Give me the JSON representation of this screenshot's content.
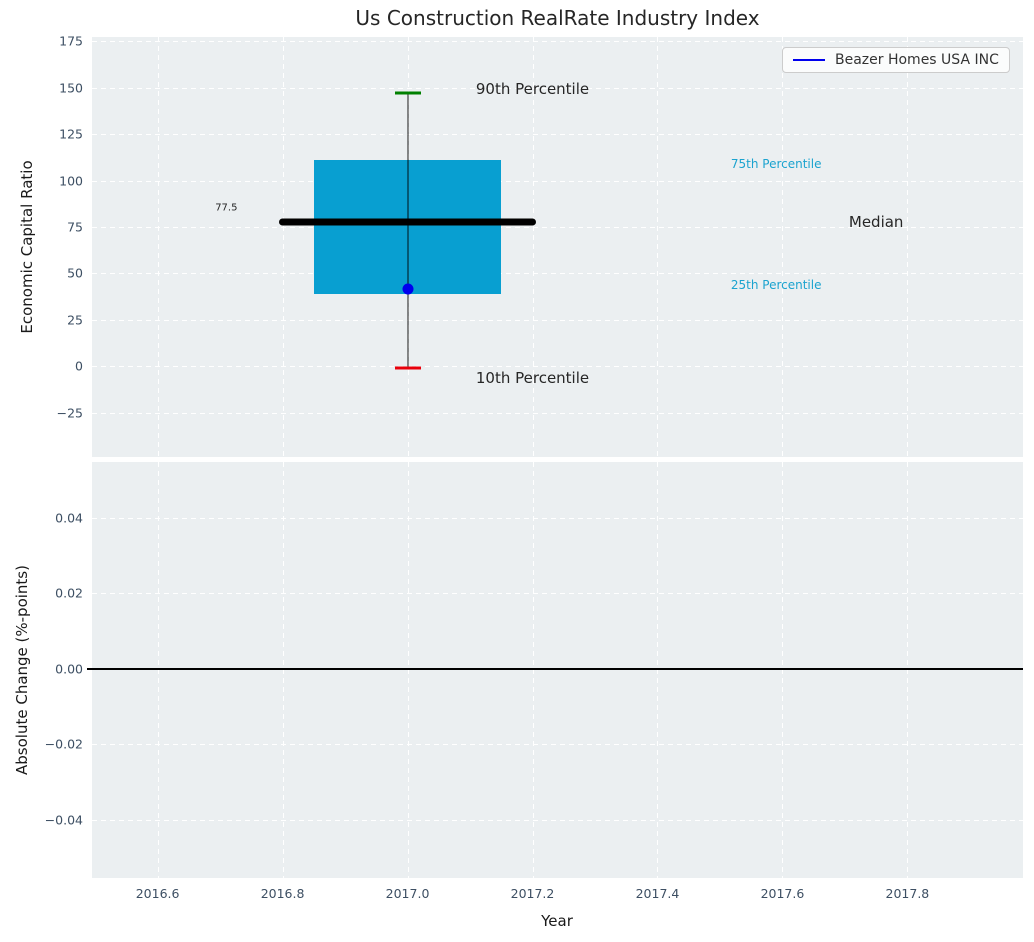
{
  "title": "Us Construction RealRate Industry Index",
  "legend": {
    "label": "Beazer Homes USA INC"
  },
  "colors": {
    "plot_bg": "#ebeff1",
    "grid": "#ffffff",
    "box_fill": "#089fd1",
    "median_line": "#000000",
    "whisker": "#737373",
    "cap_90th": "#008000",
    "cap_10th": "#e8000b",
    "company_point": "#0000ee",
    "tick_label": "#3d4f63",
    "percentile_label_cyan": "#1ba3cf",
    "annotation_black": "#262626"
  },
  "chart_data": [
    {
      "type": "boxplot",
      "title": "Us Construction RealRate Industry Index",
      "xlabel": "Year",
      "ylabel": "Economic Capital Ratio",
      "xlim": [
        2016.495,
        2017.985
      ],
      "ylim": [
        -48.7,
        177.2
      ],
      "xticks": [
        2016.6,
        2016.8,
        2017.0,
        2017.2,
        2017.4,
        2017.6,
        2017.8
      ],
      "xtick_labels": [
        "2016.6",
        "2016.8",
        "2017.0",
        "2017.2",
        "2017.4",
        "2017.6",
        "2017.8"
      ],
      "yticks": [
        175,
        150,
        125,
        100,
        75,
        50,
        25,
        0,
        -25
      ],
      "ytick_labels": [
        "175",
        "150",
        "125",
        "100",
        "75",
        "50",
        "25",
        "0",
        "−25"
      ],
      "grid": true,
      "legend_position": "upper right",
      "box": {
        "x": 2017.0,
        "box_left": 2016.85,
        "box_right": 2017.15,
        "median_left": 2016.795,
        "median_right": 2017.205,
        "p10": -1,
        "p25": 39,
        "median": 77.5,
        "p75": 111,
        "p90": 147
      },
      "company_point": {
        "x": 2017.0,
        "y": 41.5,
        "series": "Beazer Homes USA INC"
      },
      "annotations": [
        {
          "text": "90th Percentile",
          "x": 2017.2,
          "y": 149,
          "color": "#262626",
          "size": 15
        },
        {
          "text": "75th Percentile",
          "x": 2017.59,
          "y": 109,
          "color": "#1ba3cf",
          "size": 12
        },
        {
          "text": "Median",
          "x": 2017.75,
          "y": 77.5,
          "color": "#262626",
          "size": 15
        },
        {
          "text": "25th Percentile",
          "x": 2017.59,
          "y": 44,
          "color": "#1ba3cf",
          "size": 12
        },
        {
          "text": "10th Percentile",
          "x": 2017.2,
          "y": -6,
          "color": "#262626",
          "size": 15
        },
        {
          "text": "77.5",
          "x": 2016.71,
          "y": 85,
          "color": "#262626",
          "size": 10
        }
      ]
    },
    {
      "type": "line",
      "xlabel": "Year",
      "ylabel": "Absolute Change (%-points)",
      "xlim": [
        2016.495,
        2017.985
      ],
      "ylim": [
        -0.0554,
        0.0548
      ],
      "xticks": [
        2016.6,
        2016.8,
        2017.0,
        2017.2,
        2017.4,
        2017.6,
        2017.8
      ],
      "xtick_labels": [
        "2016.6",
        "2016.8",
        "2017.0",
        "2017.2",
        "2017.4",
        "2017.6",
        "2017.8"
      ],
      "yticks": [
        0.04,
        0.02,
        0.0,
        -0.02,
        -0.04
      ],
      "ytick_labels": [
        "0.04",
        "0.02",
        "0.00",
        "−0.02",
        "−0.04"
      ],
      "grid": true,
      "zero_line": 0.0,
      "series": []
    }
  ]
}
